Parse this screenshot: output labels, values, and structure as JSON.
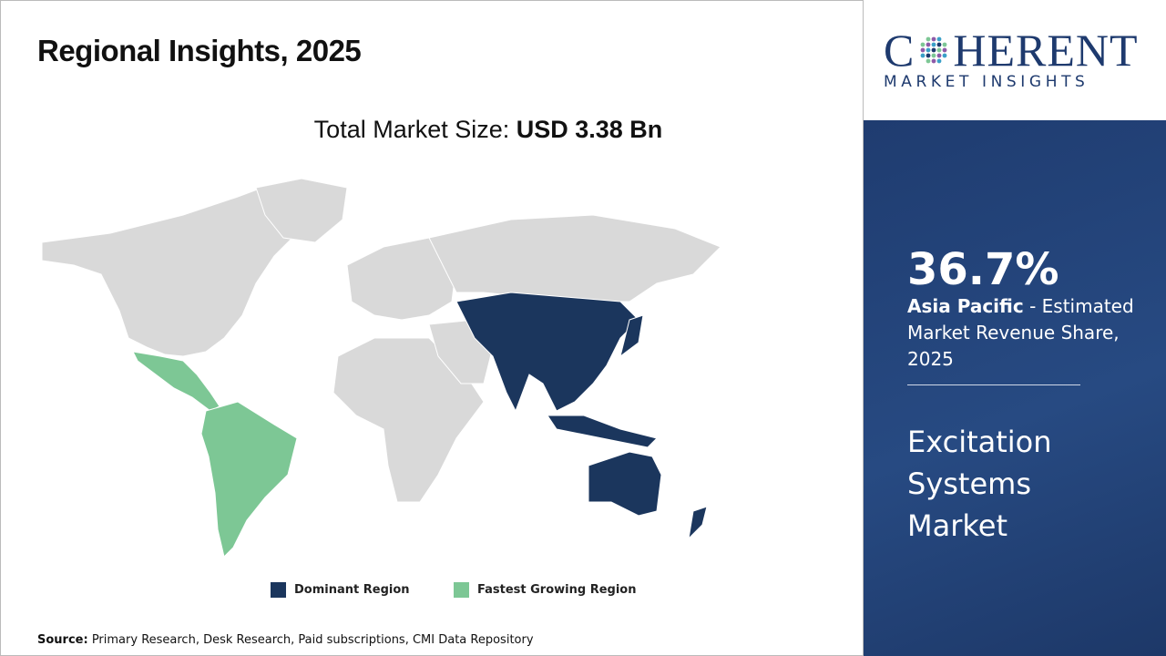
{
  "header": {
    "title": "Regional Insights, 2025"
  },
  "market_size": {
    "label": "Total Market Size: ",
    "value": "USD 3.38 Bn"
  },
  "logo": {
    "brand_start": "C",
    "brand_end": "HERENT",
    "tagline": "MARKET INSIGHTS"
  },
  "highlight": {
    "share": "36.7%",
    "region": "Asia Pacific",
    "description": " - Estimated Market Revenue Share, 2025"
  },
  "market_name": "Excitation Systems Market",
  "legend": {
    "dominant": "Dominant Region",
    "fastest": "Fastest Growing Region"
  },
  "source": {
    "label": "Source:",
    "text": " Primary Research, Desk Research, Paid subscriptions, CMI Data Repository"
  }
}
